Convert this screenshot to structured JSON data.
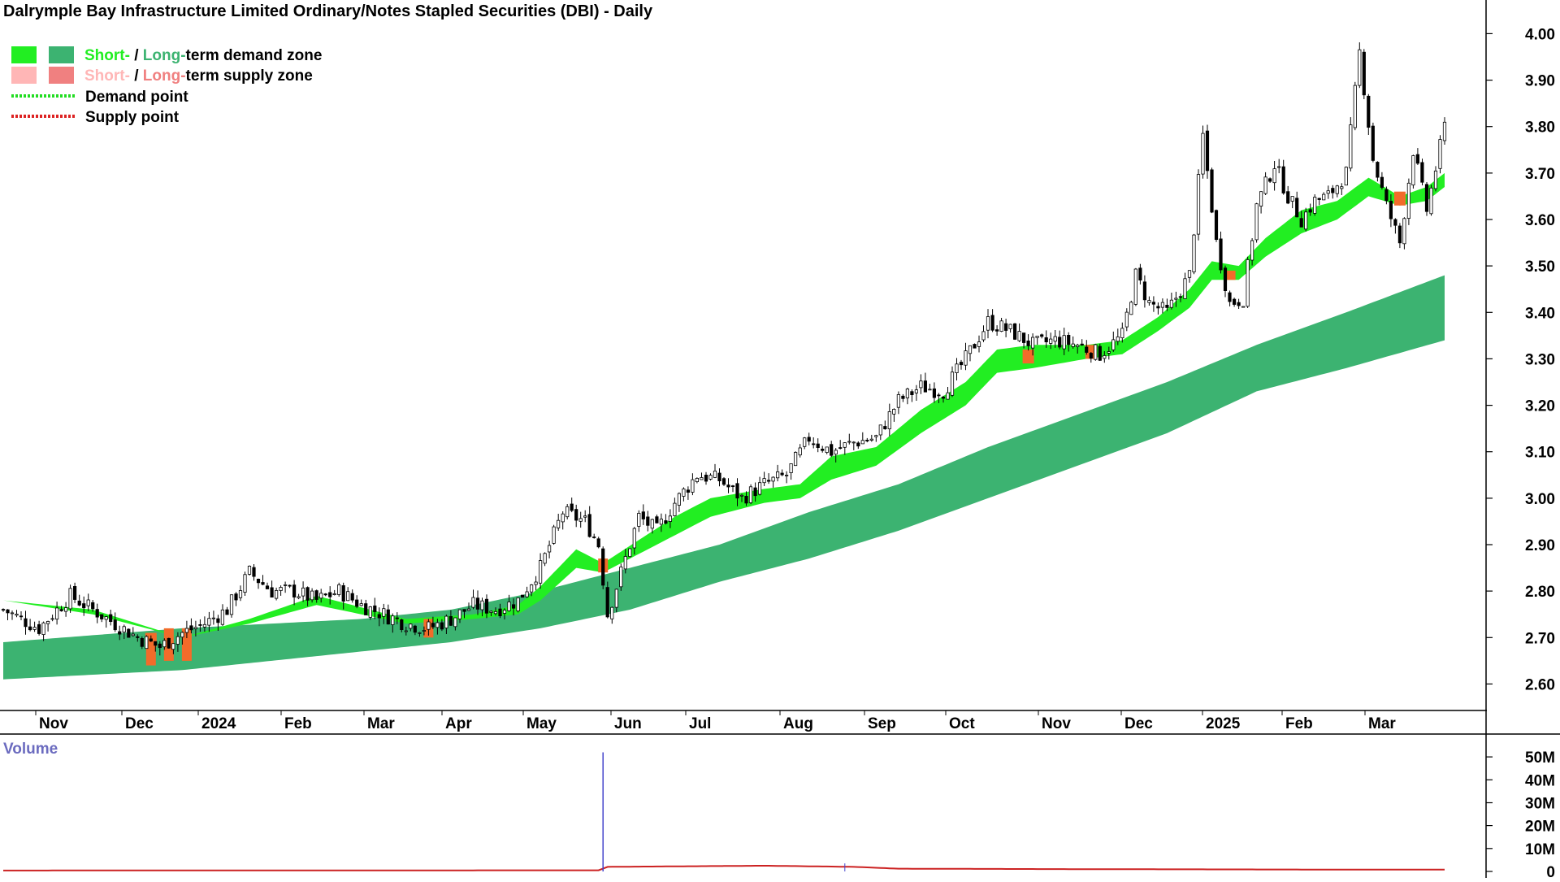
{
  "chart_data": {
    "type": "candlestick",
    "title": "Dalrymple Bay Infrastructure Limited Ordinary/Notes Stapled Securities (DBI) - Daily",
    "legend": {
      "placement": "top-left",
      "demand_zone": {
        "short": "Short-",
        "sep": " / ",
        "long": "Long-",
        "rest": "term demand zone"
      },
      "supply_zone": {
        "short": "Short-",
        "sep": " / ",
        "long": "Long-",
        "rest": "term supply zone"
      },
      "demand_point": "Demand point",
      "supply_point": "Supply point"
    },
    "colors": {
      "short_demand": "#22ee22",
      "long_demand": "#3cb371",
      "short_supply_legend": "#ffb6b6",
      "long_supply_legend": "#f08080",
      "supply_zone_fill": "#f26b2a",
      "demand_point": "#22dd22",
      "supply_point": "#dd2222",
      "candle": "#000000",
      "volume_line": "#cc2222",
      "volume_spike": "#4444cc"
    },
    "x_axis": {
      "labels": [
        "Nov",
        "Dec",
        "2024",
        "Feb",
        "Mar",
        "Apr",
        "May",
        "Jun",
        "Jul",
        "Aug",
        "Sep",
        "Oct",
        "Nov",
        "Dec",
        "2025",
        "Feb",
        "Mar"
      ],
      "months": [
        "2023-11",
        "2023-12",
        "2024-01",
        "2024-02",
        "2024-03",
        "2024-04",
        "2024-05",
        "2024-06",
        "2024-07",
        "2024-08",
        "2024-09",
        "2024-10",
        "2024-11",
        "2024-12",
        "2025-01",
        "2025-02",
        "2025-03"
      ]
    },
    "y_axis": {
      "ylim": [
        2.55,
        4.02
      ],
      "ticks": [
        "2.60",
        "2.70",
        "2.80",
        "2.90",
        "3.00",
        "3.10",
        "3.20",
        "3.30",
        "3.40",
        "3.50",
        "3.60",
        "3.70",
        "3.80",
        "3.90",
        "4.00"
      ]
    },
    "volume_axis": {
      "label": "Volume",
      "ticks": [
        "0",
        "10M",
        "20M",
        "30M",
        "40M",
        "50M"
      ],
      "ylim": [
        0,
        55
      ]
    },
    "price_path": [
      [
        0,
        2.76
      ],
      [
        8,
        2.72
      ],
      [
        15,
        2.79
      ],
      [
        20,
        2.76
      ],
      [
        25,
        2.73
      ],
      [
        30,
        2.7
      ],
      [
        35,
        2.68
      ],
      [
        40,
        2.71
      ],
      [
        45,
        2.73
      ],
      [
        50,
        2.76
      ],
      [
        55,
        2.84
      ],
      [
        60,
        2.8
      ],
      [
        65,
        2.8
      ],
      [
        70,
        2.78
      ],
      [
        75,
        2.8
      ],
      [
        80,
        2.77
      ],
      [
        85,
        2.75
      ],
      [
        90,
        2.73
      ],
      [
        95,
        2.72
      ],
      [
        100,
        2.74
      ],
      [
        105,
        2.77
      ],
      [
        110,
        2.76
      ],
      [
        115,
        2.78
      ],
      [
        120,
        2.85
      ],
      [
        125,
        2.97
      ],
      [
        130,
        2.95
      ],
      [
        133,
        2.9
      ],
      [
        135,
        2.75
      ],
      [
        138,
        2.84
      ],
      [
        142,
        2.96
      ],
      [
        146,
        2.93
      ],
      [
        150,
        2.99
      ],
      [
        155,
        3.05
      ],
      [
        160,
        3.04
      ],
      [
        165,
        3.0
      ],
      [
        170,
        3.03
      ],
      [
        175,
        3.05
      ],
      [
        180,
        3.13
      ],
      [
        185,
        3.1
      ],
      [
        190,
        3.12
      ],
      [
        195,
        3.13
      ],
      [
        200,
        3.21
      ],
      [
        205,
        3.24
      ],
      [
        210,
        3.23
      ],
      [
        215,
        3.3
      ],
      [
        220,
        3.38
      ],
      [
        225,
        3.36
      ],
      [
        230,
        3.33
      ],
      [
        235,
        3.34
      ],
      [
        240,
        3.33
      ],
      [
        245,
        3.31
      ],
      [
        250,
        3.35
      ],
      [
        253,
        3.48
      ],
      [
        256,
        3.42
      ],
      [
        260,
        3.4
      ],
      [
        265,
        3.48
      ],
      [
        268,
        3.78
      ],
      [
        271,
        3.55
      ],
      [
        274,
        3.42
      ],
      [
        277,
        3.43
      ],
      [
        280,
        3.63
      ],
      [
        284,
        3.72
      ],
      [
        287,
        3.65
      ],
      [
        290,
        3.6
      ],
      [
        293,
        3.64
      ],
      [
        296,
        3.65
      ],
      [
        300,
        3.7
      ],
      [
        303,
        3.96
      ],
      [
        306,
        3.73
      ],
      [
        309,
        3.63
      ],
      [
        312,
        3.55
      ],
      [
        315,
        3.75
      ],
      [
        318,
        3.62
      ],
      [
        322,
        3.8
      ]
    ],
    "short_term_band": [
      [
        0,
        2.78,
        2.78
      ],
      [
        20,
        2.76,
        2.75
      ],
      [
        40,
        2.7,
        2.7
      ],
      [
        55,
        2.74,
        2.73
      ],
      [
        70,
        2.79,
        2.77
      ],
      [
        90,
        2.74,
        2.73
      ],
      [
        105,
        2.75,
        2.74
      ],
      [
        115,
        2.77,
        2.75
      ],
      [
        120,
        2.81,
        2.78
      ],
      [
        128,
        2.89,
        2.85
      ],
      [
        134,
        2.86,
        2.84
      ],
      [
        142,
        2.91,
        2.88
      ],
      [
        150,
        2.96,
        2.92
      ],
      [
        158,
        3.0,
        2.96
      ],
      [
        170,
        3.02,
        2.99
      ],
      [
        178,
        3.03,
        3.0
      ],
      [
        185,
        3.09,
        3.04
      ],
      [
        195,
        3.11,
        3.07
      ],
      [
        205,
        3.19,
        3.14
      ],
      [
        215,
        3.25,
        3.2
      ],
      [
        222,
        3.32,
        3.27
      ],
      [
        230,
        3.33,
        3.28
      ],
      [
        242,
        3.33,
        3.3
      ],
      [
        250,
        3.34,
        3.31
      ],
      [
        258,
        3.39,
        3.36
      ],
      [
        265,
        3.45,
        3.41
      ],
      [
        270,
        3.51,
        3.47
      ],
      [
        276,
        3.5,
        3.47
      ],
      [
        282,
        3.56,
        3.52
      ],
      [
        290,
        3.62,
        3.57
      ],
      [
        298,
        3.64,
        3.6
      ],
      [
        305,
        3.69,
        3.65
      ],
      [
        312,
        3.65,
        3.63
      ],
      [
        318,
        3.67,
        3.64
      ],
      [
        322,
        3.7,
        3.67
      ]
    ],
    "long_term_band": [
      [
        0,
        2.69,
        2.61
      ],
      [
        40,
        2.72,
        2.63
      ],
      [
        80,
        2.74,
        2.67
      ],
      [
        100,
        2.76,
        2.69
      ],
      [
        120,
        2.8,
        2.72
      ],
      [
        140,
        2.85,
        2.76
      ],
      [
        160,
        2.9,
        2.82
      ],
      [
        180,
        2.97,
        2.87
      ],
      [
        200,
        3.03,
        2.93
      ],
      [
        220,
        3.11,
        3.0
      ],
      [
        240,
        3.18,
        3.07
      ],
      [
        260,
        3.25,
        3.14
      ],
      [
        280,
        3.33,
        3.23
      ],
      [
        300,
        3.4,
        3.28
      ],
      [
        322,
        3.48,
        3.34
      ]
    ],
    "supply_zones_short": [
      [
        33,
        2.71,
        2.68
      ],
      [
        229,
        3.32,
        3.29
      ],
      [
        243,
        3.33,
        3.3
      ],
      [
        274,
        3.49,
        3.47
      ],
      [
        312,
        3.66,
        3.63
      ]
    ],
    "supply_zones_long": [
      [
        33,
        2.71,
        2.64
      ],
      [
        37,
        2.72,
        2.65
      ],
      [
        41,
        2.72,
        2.65
      ],
      [
        95,
        2.74,
        2.7
      ],
      [
        134,
        2.87,
        2.84
      ]
    ],
    "volume_path": [
      [
        0,
        0.4
      ],
      [
        133,
        0.5
      ],
      [
        134,
        52
      ],
      [
        135,
        2
      ],
      [
        170,
        2.5
      ],
      [
        190,
        2
      ],
      [
        200,
        1.2
      ],
      [
        240,
        1
      ],
      [
        300,
        0.8
      ],
      [
        322,
        0.8
      ]
    ]
  }
}
